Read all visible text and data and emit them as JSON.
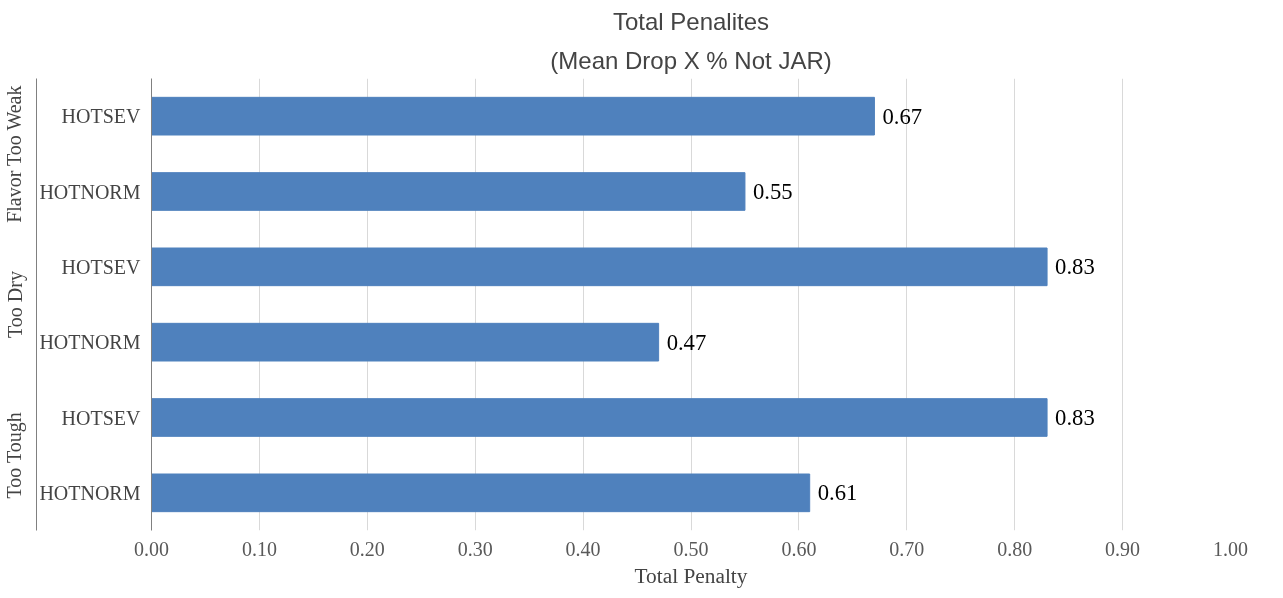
{
  "chart_data": {
    "type": "bar",
    "orientation": "horizontal",
    "title": "Total Penalites",
    "subtitle": "(Mean Drop X % Not JAR)",
    "xlabel": "Total Penalty",
    "categories": [
      "HOTSEV",
      "HOTNORM",
      "HOTSEV",
      "HOTNORM",
      "HOTSEV",
      "HOTNORM"
    ],
    "values": [
      0.67,
      0.55,
      0.83,
      0.47,
      0.83,
      0.61
    ],
    "color": "#4f81bd",
    "annotations": [
      "Flavor Too Weak",
      "Too Dry",
      "Too Tough"
    ],
    "xlim": [
      0,
      1
    ],
    "xticks": [
      {
        "value": 0,
        "label": "0.00"
      },
      {
        "value": 0.1,
        "label": "0.10"
      },
      {
        "value": 0.2,
        "label": "0.20"
      },
      {
        "value": 0.3,
        "label": "0.30"
      },
      {
        "value": 0.4,
        "label": "0.40"
      },
      {
        "value": 0.5,
        "label": "0.50"
      },
      {
        "value": 0.6,
        "label": "0.60"
      },
      {
        "value": 0.7,
        "label": "0.70"
      },
      {
        "value": 0.8,
        "label": "0.80"
      },
      {
        "value": 0.9,
        "label": "0.90"
      },
      {
        "value": 1,
        "label": "1.00"
      }
    ],
    "grid": "x",
    "data_labels": true
  }
}
